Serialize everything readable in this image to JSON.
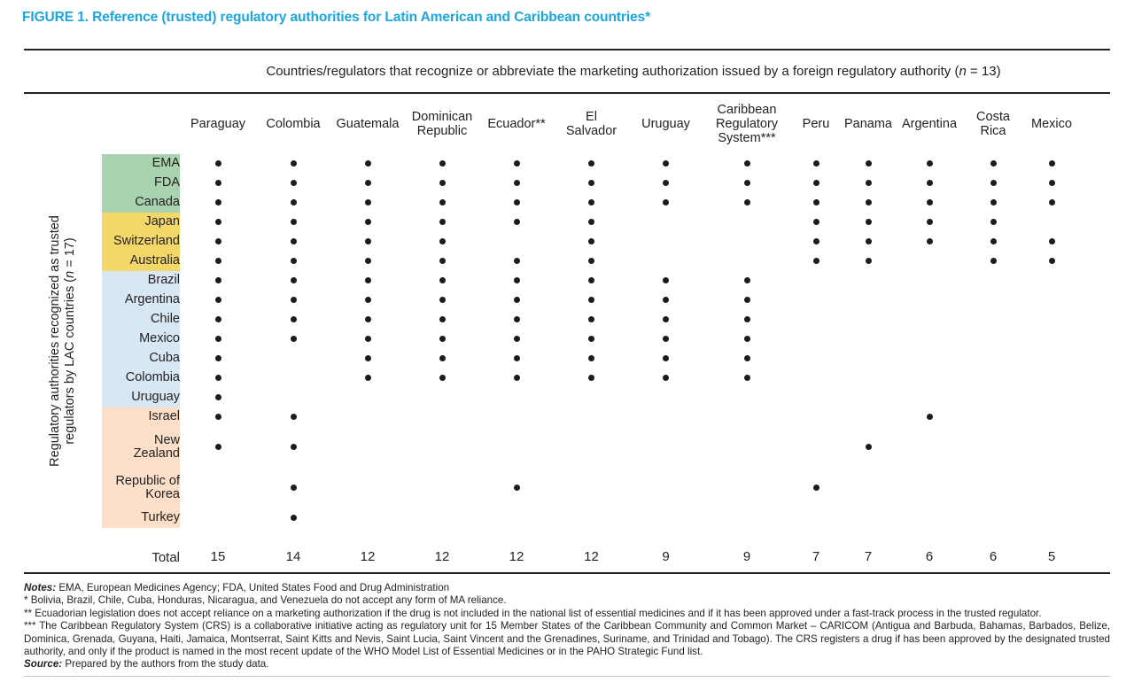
{
  "figure_title": "FIGURE 1. Reference (trusted) regulatory authorities for Latin American and Caribbean countries*",
  "colors": {
    "accent": "#1ca6e0",
    "text": "#231f20",
    "dot": "#1c1c1c",
    "groups": {
      "green": "#a9d3af",
      "yellow": "#f3d869",
      "blue": "#d7e7f4",
      "peach": "#fbdfc8"
    }
  },
  "chart_data": {
    "type": "table",
    "title": "FIGURE 1. Reference (trusted) regulatory authorities for Latin American and Caribbean countries*",
    "column_axis_title": "Countries/regulators that recognize or abbreviate the marketing authorization issued by a foreign regulatory authority (n = 13)",
    "row_axis_title": "Regulatory authorities recognized as trusted\nregulators by LAC countries (n = 17)",
    "columns": [
      "Paraguay",
      "Colombia",
      "Guatemala",
      "Dominican\nRepublic",
      "Ecuador**",
      "El\nSalvador",
      "Uruguay",
      "Caribbean\nRegulatory\nSystem***",
      "Peru",
      "Panama",
      "Argentina",
      "Costa\nRica",
      "Mexico"
    ],
    "rows": [
      {
        "label": "EMA",
        "group": "green",
        "dots": [
          1,
          1,
          1,
          1,
          1,
          1,
          1,
          1,
          1,
          1,
          1,
          1,
          1
        ]
      },
      {
        "label": "FDA",
        "group": "green",
        "dots": [
          1,
          1,
          1,
          1,
          1,
          1,
          1,
          1,
          1,
          1,
          1,
          1,
          1
        ]
      },
      {
        "label": "Canada",
        "group": "green",
        "dots": [
          1,
          1,
          1,
          1,
          1,
          1,
          1,
          1,
          1,
          1,
          1,
          1,
          1
        ]
      },
      {
        "label": "Japan",
        "group": "yellow",
        "dots": [
          1,
          1,
          1,
          1,
          1,
          1,
          0,
          0,
          1,
          1,
          1,
          1,
          0
        ]
      },
      {
        "label": "Switzerland",
        "group": "yellow",
        "dots": [
          1,
          1,
          1,
          1,
          0,
          1,
          0,
          0,
          1,
          1,
          1,
          1,
          1
        ]
      },
      {
        "label": "Australia",
        "group": "yellow",
        "dots": [
          1,
          1,
          1,
          1,
          1,
          1,
          0,
          0,
          1,
          1,
          0,
          1,
          1
        ]
      },
      {
        "label": "Brazil",
        "group": "blue",
        "dots": [
          1,
          1,
          1,
          1,
          1,
          1,
          1,
          1,
          0,
          0,
          0,
          0,
          0
        ]
      },
      {
        "label": "Argentina",
        "group": "blue",
        "dots": [
          1,
          1,
          1,
          1,
          1,
          1,
          1,
          1,
          0,
          0,
          0,
          0,
          0
        ]
      },
      {
        "label": "Chile",
        "group": "blue",
        "dots": [
          1,
          1,
          1,
          1,
          1,
          1,
          1,
          1,
          0,
          0,
          0,
          0,
          0
        ]
      },
      {
        "label": "Mexico",
        "group": "blue",
        "dots": [
          1,
          1,
          1,
          1,
          1,
          1,
          1,
          1,
          0,
          0,
          0,
          0,
          0
        ]
      },
      {
        "label": "Cuba",
        "group": "blue",
        "dots": [
          1,
          0,
          1,
          1,
          1,
          1,
          1,
          1,
          0,
          0,
          0,
          0,
          0
        ]
      },
      {
        "label": "Colombia",
        "group": "blue",
        "dots": [
          1,
          0,
          1,
          1,
          1,
          1,
          1,
          1,
          0,
          0,
          0,
          0,
          0
        ]
      },
      {
        "label": "Uruguay",
        "group": "blue",
        "dots": [
          1,
          0,
          0,
          0,
          0,
          0,
          0,
          0,
          0,
          0,
          0,
          0,
          0
        ]
      },
      {
        "label": "Israel",
        "group": "peach",
        "dots": [
          1,
          1,
          0,
          0,
          0,
          0,
          0,
          0,
          0,
          0,
          1,
          0,
          0
        ]
      },
      {
        "label": "New\nZealand",
        "group": "peach",
        "dots": [
          1,
          1,
          0,
          0,
          0,
          0,
          0,
          0,
          0,
          1,
          0,
          0,
          0
        ]
      },
      {
        "label": "Republic of\nKorea",
        "group": "peach",
        "dots": [
          0,
          1,
          0,
          0,
          1,
          0,
          0,
          0,
          1,
          0,
          0,
          0,
          0
        ]
      },
      {
        "label": "Turkey",
        "group": "peach",
        "dots": [
          0,
          1,
          0,
          0,
          0,
          0,
          0,
          0,
          0,
          0,
          0,
          0,
          0
        ]
      }
    ],
    "total_label": "Total",
    "totals": [
      15,
      14,
      12,
      12,
      12,
      12,
      9,
      9,
      7,
      7,
      6,
      6,
      5
    ]
  },
  "notes": [
    {
      "lead": "Notes:",
      "text": "EMA, European Medicines Agency; FDA, United States Food and Drug Administration"
    },
    {
      "lead": "",
      "text": "* Bolivia, Brazil, Chile, Cuba, Honduras, Nicaragua, and Venezuela do not accept any form of MA reliance."
    },
    {
      "lead": "",
      "text": "** Ecuadorian legislation does not accept reliance on a marketing authorization if the drug is not included in the national list of essential medicines and if it has been approved under a fast-track process in the trusted regulator."
    },
    {
      "lead": "",
      "text": "*** The Caribbean Regulatory System (CRS) is a collaborative initiative acting as regulatory unit for 15 Member States of the Caribbean Community and Common Market – CARICOM (Antigua and Barbuda, Bahamas, Barbados, Belize, Dominica, Grenada, Guyana, Haiti, Jamaica, Montserrat, Saint Kitts and Nevis, Saint Lucia, Saint Vincent and the Grenadines, Suriname, and Trinidad and Tobago). The CRS registers a drug if has been approved by the designated trusted authority, and only if the product is named in the most recent update of the WHO Model List of Essential Medicines or in the PAHO Strategic Fund list."
    },
    {
      "lead": "Source:",
      "text": "Prepared by the authors from the study data."
    }
  ]
}
